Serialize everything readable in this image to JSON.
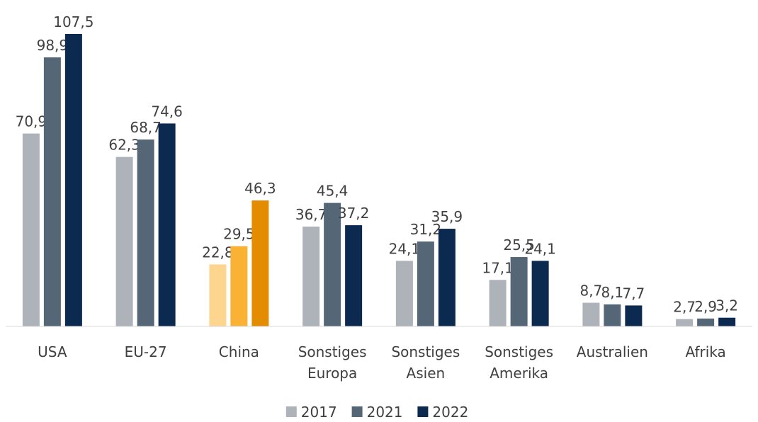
{
  "chart_data": {
    "type": "bar",
    "categories": [
      "USA",
      "EU-27",
      "China",
      "Sonstiges Europa",
      "Sonstiges Asien",
      "Sonstiges Amerika",
      "Australien",
      "Afrika"
    ],
    "series": [
      {
        "name": "2017",
        "color": "#adb3b9",
        "colors": [
          "#adb3b9",
          "#adb3b9",
          "#fdd58f",
          "#adb3b9",
          "#adb3b9",
          "#adb3b9",
          "#adb3b9",
          "#adb3b9"
        ],
        "values": [
          70.9,
          62.3,
          22.8,
          36.7,
          24.1,
          17.1,
          8.7,
          2.7
        ],
        "value_labels": [
          "70,9",
          "62,3",
          "22,8",
          "36,7",
          "24,1",
          "17,1",
          "8,7",
          "2,7"
        ]
      },
      {
        "name": "2021",
        "color": "#556677",
        "colors": [
          "#556677",
          "#556677",
          "#f9b233",
          "#556677",
          "#556677",
          "#556677",
          "#556677",
          "#556677"
        ],
        "values": [
          98.9,
          68.7,
          29.5,
          45.4,
          31.2,
          25.5,
          8.1,
          2.9
        ],
        "value_labels": [
          "98,9",
          "68,7",
          "29,5",
          "45,4",
          "31,2",
          "25,5",
          "8,1",
          "2,9"
        ]
      },
      {
        "name": "2022",
        "color": "#0c2950",
        "colors": [
          "#0c2950",
          "#0c2950",
          "#e38c00",
          "#0c2950",
          "#0c2950",
          "#0c2950",
          "#0c2950",
          "#0c2950"
        ],
        "values": [
          107.5,
          74.6,
          46.3,
          37.2,
          35.9,
          24.1,
          7.7,
          3.2
        ],
        "value_labels": [
          "107,5",
          "74,6",
          "46,3",
          "37,2",
          "35,9",
          "24,1",
          "7,7",
          "3,2"
        ]
      }
    ],
    "ylim": [
      0,
      110
    ],
    "legend": "bottom"
  }
}
